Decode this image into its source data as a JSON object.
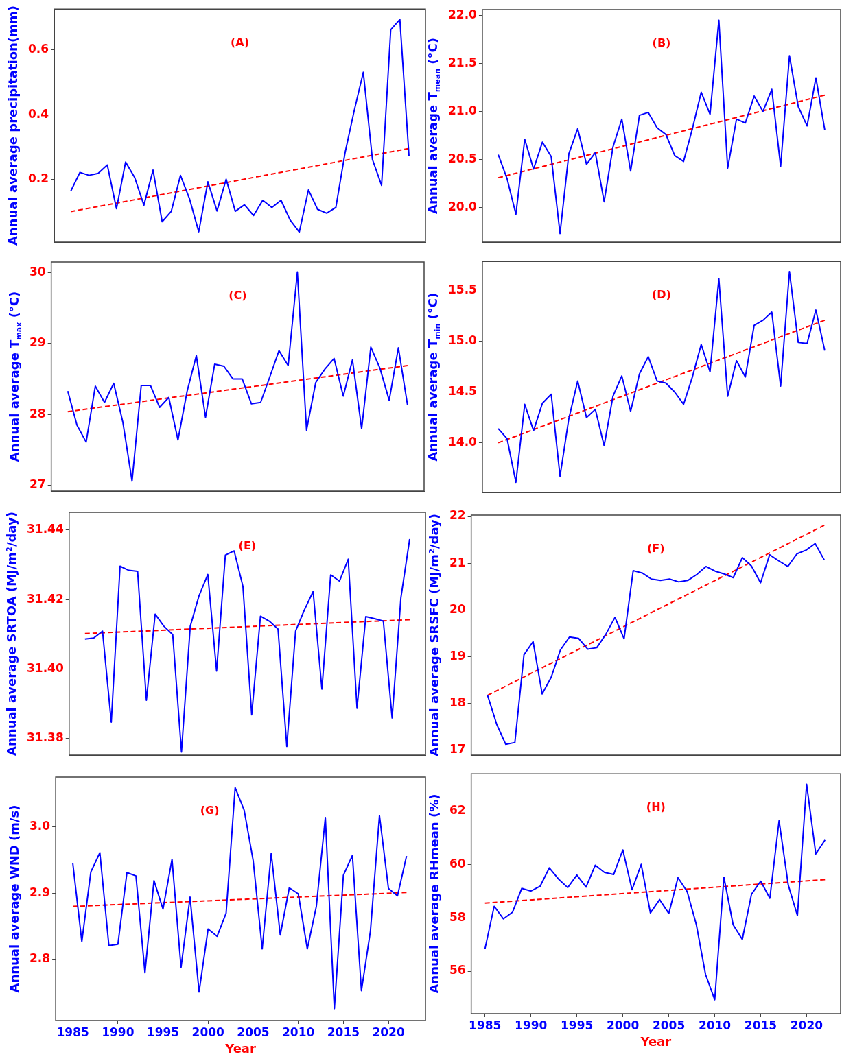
{
  "chart_data": [
    {
      "type": "line",
      "title": "(A)",
      "ylabel": "Annual average precipitation(mm)",
      "categories": [
        null,
        null,
        null,
        null,
        null,
        null,
        null,
        null,
        null,
        null,
        null,
        null,
        null,
        null,
        null,
        null,
        null,
        null,
        null,
        null,
        null,
        null,
        null,
        null,
        null,
        null,
        null,
        null,
        null,
        null,
        null,
        null,
        null,
        null,
        null,
        null,
        null,
        null
      ],
      "ylim": [
        0.007,
        0.726
      ],
      "yticks": [
        0.2,
        0.4,
        0.6
      ],
      "tick_labels": "y",
      "series": [
        {
          "color": "#0000ff",
          "values": [
            0.164,
            0.222,
            0.213,
            0.219,
            0.245,
            0.11,
            0.254,
            0.206,
            0.121,
            0.229,
            0.07,
            0.102,
            0.213,
            0.14,
            0.039,
            0.193,
            0.103,
            0.201,
            0.102,
            0.122,
            0.089,
            0.136,
            0.114,
            0.136,
            0.075,
            0.038,
            0.168,
            0.108,
            0.096,
            0.114,
            0.282,
            0.412,
            0.531,
            0.262,
            0.182,
            0.662,
            0.694,
            0.272
          ]
        },
        {
          "type": "line",
          "color": "#ff0000",
          "line_style": "dashed",
          "values": [
            0.101,
            null,
            null,
            null,
            null,
            null,
            null,
            null,
            null,
            null,
            null,
            null,
            null,
            null,
            null,
            null,
            null,
            null,
            null,
            null,
            null,
            null,
            null,
            null,
            null,
            null,
            null,
            null,
            null,
            null,
            null,
            null,
            null,
            null,
            null,
            null,
            null,
            0.296
          ]
        }
      ]
    },
    {
      "type": "line",
      "title": "(B)",
      "ylabel": "Annual average T$_{mean}$ (°C)",
      "categories": [
        null,
        null,
        null,
        null,
        null,
        null,
        null,
        null,
        null,
        null,
        null,
        null,
        null,
        null,
        null,
        null,
        null,
        null,
        null,
        null,
        null,
        null,
        null,
        null,
        null,
        null,
        null,
        null,
        null,
        null,
        null,
        null,
        null,
        null,
        null,
        null,
        null,
        null
      ],
      "ylim": [
        19.64,
        22.06
      ],
      "yticks": [
        {
          "value": 20,
          "label": "20.0"
        },
        20.5,
        {
          "value": 21,
          "label": "21.0"
        },
        21.5,
        {
          "value": 22,
          "label": "22.0"
        }
      ],
      "tick_labels": "y",
      "series": [
        {
          "color": "#0000ff",
          "values": [
            20.55,
            20.3,
            19.93,
            20.71,
            20.4,
            20.68,
            20.53,
            19.73,
            20.56,
            20.82,
            20.45,
            20.57,
            20.06,
            20.63,
            20.92,
            20.38,
            20.96,
            20.99,
            20.83,
            20.76,
            20.54,
            20.48,
            20.82,
            21.2,
            20.97,
            21.95,
            20.41,
            20.92,
            20.88,
            21.16,
            21.0,
            21.23,
            20.43,
            21.58,
            21.05,
            20.85,
            21.35,
            20.81
          ]
        },
        {
          "type": "line",
          "color": "#ff0000",
          "line_style": "dashed",
          "values": [
            20.31,
            null,
            null,
            null,
            null,
            null,
            null,
            null,
            null,
            null,
            null,
            null,
            null,
            null,
            null,
            null,
            null,
            null,
            null,
            null,
            null,
            null,
            null,
            null,
            null,
            null,
            null,
            null,
            null,
            null,
            null,
            null,
            null,
            null,
            null,
            null,
            null,
            21.17
          ]
        }
      ]
    },
    {
      "type": "line",
      "title": "(C)",
      "ylabel": "Annual average T$_{max}$ (°C)",
      "categories": [
        null,
        null,
        null,
        null,
        null,
        null,
        null,
        null,
        null,
        null,
        null,
        null,
        null,
        null,
        null,
        null,
        null,
        null,
        null,
        null,
        null,
        null,
        null,
        null,
        null,
        null,
        null,
        null,
        null,
        null,
        null,
        null,
        null,
        null,
        null,
        null,
        null,
        null
      ],
      "ylim": [
        26.92,
        30.15
      ],
      "yticks": [
        27,
        28,
        29,
        30
      ],
      "tick_labels": "y",
      "series": [
        {
          "color": "#0000ff",
          "values": [
            28.33,
            27.85,
            27.61,
            28.4,
            28.17,
            28.44,
            27.89,
            27.06,
            28.41,
            28.41,
            28.1,
            28.24,
            27.64,
            28.33,
            28.83,
            27.96,
            28.71,
            28.68,
            28.5,
            28.5,
            28.15,
            28.17,
            28.53,
            28.9,
            28.69,
            30.01,
            27.78,
            28.45,
            28.64,
            28.79,
            28.26,
            28.77,
            27.8,
            28.95,
            28.65,
            28.2,
            28.94,
            28.13
          ]
        },
        {
          "type": "line",
          "color": "#ff0000",
          "line_style": "dashed",
          "values": [
            28.04,
            null,
            null,
            null,
            null,
            null,
            null,
            null,
            null,
            null,
            null,
            null,
            null,
            null,
            null,
            null,
            null,
            null,
            null,
            null,
            null,
            null,
            null,
            null,
            null,
            null,
            null,
            null,
            null,
            null,
            null,
            null,
            null,
            null,
            null,
            null,
            null,
            28.69
          ]
        }
      ]
    },
    {
      "type": "line",
      "title": "(D)",
      "ylabel": "Annual average T$_{min}$ (°C)",
      "categories": [
        null,
        null,
        null,
        null,
        null,
        null,
        null,
        null,
        null,
        null,
        null,
        null,
        null,
        null,
        null,
        null,
        null,
        null,
        null,
        null,
        null,
        null,
        null,
        null,
        null,
        null,
        null,
        null,
        null,
        null,
        null,
        null,
        null,
        null,
        null,
        null,
        null,
        null
      ],
      "ylim": [
        13.51,
        15.79
      ],
      "yticks": [
        {
          "value": 14,
          "label": "14.0"
        },
        14.5,
        {
          "value": 15,
          "label": "15.0"
        },
        15.5
      ],
      "tick_labels": "y",
      "series": [
        {
          "color": "#0000ff",
          "values": [
            14.14,
            14.04,
            13.61,
            14.38,
            14.12,
            14.39,
            14.48,
            13.67,
            14.24,
            14.61,
            14.25,
            14.33,
            13.97,
            14.46,
            14.66,
            14.31,
            14.68,
            14.85,
            14.61,
            14.59,
            14.5,
            14.38,
            14.65,
            14.97,
            14.7,
            15.62,
            14.46,
            14.81,
            14.65,
            15.16,
            15.21,
            15.29,
            14.56,
            15.69,
            14.99,
            14.98,
            15.31,
            14.91
          ]
        },
        {
          "type": "line",
          "color": "#ff0000",
          "line_style": "dashed",
          "values": [
            14.0,
            null,
            null,
            null,
            null,
            null,
            null,
            null,
            null,
            null,
            null,
            null,
            null,
            null,
            null,
            null,
            null,
            null,
            null,
            null,
            null,
            null,
            null,
            null,
            null,
            null,
            null,
            null,
            null,
            null,
            null,
            null,
            null,
            null,
            null,
            null,
            null,
            15.21
          ]
        }
      ]
    },
    {
      "type": "line",
      "title": "(E)",
      "ylabel": "Annual average SRTOA (MJ/m²/day)",
      "categories": [
        null,
        null,
        null,
        null,
        null,
        null,
        null,
        null,
        null,
        null,
        null,
        null,
        null,
        null,
        null,
        null,
        null,
        null,
        null,
        null,
        null,
        null,
        null,
        null,
        null,
        null,
        null,
        null,
        null,
        null,
        null,
        null,
        null,
        null,
        null,
        null,
        null,
        null
      ],
      "ylim": [
        31.3752,
        31.4451
      ],
      "yticks": [
        31.38,
        {
          "value": 31.4,
          "label": "31.40"
        },
        31.42,
        31.44
      ],
      "tick_labels": "y",
      "series": [
        {
          "color": "#0000ff",
          "values": [
            31.4086,
            31.4089,
            31.4109,
            31.3847,
            31.4296,
            31.4284,
            31.4281,
            31.391,
            31.4158,
            31.4123,
            31.4099,
            31.3761,
            31.4123,
            31.4211,
            31.4272,
            31.3994,
            31.4328,
            31.434,
            31.4238,
            31.3868,
            31.4152,
            31.4138,
            31.4115,
            31.3777,
            31.4109,
            31.417,
            31.4223,
            31.3942,
            31.4271,
            31.4253,
            31.4316,
            31.3887,
            31.4151,
            31.4145,
            31.4138,
            31.3859,
            31.4205,
            31.4374
          ]
        },
        {
          "type": "line",
          "color": "#ff0000",
          "line_style": "dashed",
          "values": [
            31.4102,
            null,
            null,
            null,
            null,
            null,
            null,
            null,
            null,
            null,
            null,
            null,
            null,
            null,
            null,
            null,
            null,
            null,
            null,
            null,
            null,
            null,
            null,
            null,
            null,
            null,
            null,
            null,
            null,
            null,
            null,
            null,
            null,
            null,
            null,
            null,
            null,
            31.4142
          ]
        }
      ]
    },
    {
      "type": "line",
      "title": "(F)",
      "ylabel": "Annual average SRSFC (MJ/m²/day)",
      "categories": [
        null,
        null,
        null,
        null,
        null,
        null,
        null,
        null,
        null,
        null,
        null,
        null,
        null,
        null,
        null,
        null,
        null,
        null,
        null,
        null,
        null,
        null,
        null,
        null,
        null,
        null,
        null,
        null,
        null,
        null,
        null,
        null,
        null,
        null,
        null,
        null,
        null,
        null
      ],
      "ylim": [
        16.89,
        22.03
      ],
      "yticks": [
        17,
        18,
        19,
        20,
        21,
        22
      ],
      "tick_labels": "y",
      "series": [
        {
          "color": "#0000ff",
          "values": [
            18.17,
            17.55,
            17.12,
            17.16,
            19.04,
            19.32,
            18.2,
            18.56,
            19.14,
            19.42,
            19.39,
            19.16,
            19.19,
            19.48,
            19.84,
            19.38,
            20.84,
            20.79,
            20.66,
            20.63,
            20.66,
            20.6,
            20.63,
            20.76,
            20.93,
            20.83,
            20.77,
            20.69,
            21.12,
            20.94,
            20.58,
            21.18,
            21.05,
            20.93,
            21.2,
            21.28,
            21.42,
            21.07
          ]
        },
        {
          "type": "line",
          "color": "#ff0000",
          "line_style": "dashed",
          "values": [
            18.17,
            null,
            null,
            null,
            null,
            null,
            null,
            null,
            null,
            null,
            null,
            null,
            null,
            null,
            null,
            null,
            null,
            null,
            null,
            null,
            null,
            null,
            null,
            null,
            null,
            null,
            null,
            null,
            null,
            null,
            null,
            null,
            null,
            null,
            null,
            null,
            null,
            21.81
          ]
        }
      ]
    },
    {
      "type": "line",
      "title": "(G)",
      "xlabel": "Year",
      "ylabel": "Annual average WND (m/s)",
      "x": [
        1985,
        1986,
        1987,
        1988,
        1989,
        1990,
        1991,
        1992,
        1993,
        1994,
        1995,
        1996,
        1997,
        1998,
        1999,
        2000,
        2001,
        2002,
        2003,
        2004,
        2005,
        2006,
        2007,
        2008,
        2009,
        2010,
        2011,
        2012,
        2013,
        2014,
        2015,
        2016,
        2017,
        2018,
        2019,
        2020,
        2021,
        2022
      ],
      "xlim": [
        1983.1,
        2024.1
      ],
      "xticks": [
        1985,
        1990,
        1995,
        2000,
        2005,
        2010,
        2015,
        2020
      ],
      "ylim": [
        2.708,
        3.075
      ],
      "yticks": [
        2.8,
        2.9,
        {
          "value": 3,
          "label": "3.0"
        }
      ],
      "series": [
        {
          "color": "#0000ff",
          "values": [
            2.945,
            2.827,
            2.932,
            2.961,
            2.821,
            2.823,
            2.931,
            2.926,
            2.78,
            2.919,
            2.876,
            2.951,
            2.788,
            2.894,
            2.751,
            2.846,
            2.835,
            2.87,
            3.059,
            3.025,
            2.949,
            2.816,
            2.96,
            2.837,
            2.908,
            2.899,
            2.816,
            2.88,
            3.014,
            2.726,
            2.927,
            2.957,
            2.753,
            2.843,
            3.017,
            2.907,
            2.896,
            2.956
          ]
        },
        {
          "type": "line",
          "color": "#ff0000",
          "line_style": "dashed",
          "values": [
            2.88,
            null,
            null,
            null,
            null,
            null,
            null,
            null,
            null,
            null,
            null,
            null,
            null,
            null,
            null,
            null,
            null,
            null,
            null,
            null,
            null,
            null,
            null,
            null,
            null,
            null,
            null,
            null,
            null,
            null,
            null,
            null,
            null,
            null,
            null,
            null,
            null,
            2.901
          ]
        }
      ]
    },
    {
      "type": "line",
      "title": "(H)",
      "xlabel": "Year",
      "ylabel": "Annual average RHmean (%)",
      "x": [
        1985,
        1986,
        1987,
        1988,
        1989,
        1990,
        1991,
        1992,
        1993,
        1994,
        1995,
        1996,
        1997,
        1998,
        1999,
        2000,
        2001,
        2002,
        2003,
        2004,
        2005,
        2006,
        2007,
        2008,
        2009,
        2010,
        2011,
        2012,
        2013,
        2014,
        2015,
        2016,
        2017,
        2018,
        2019,
        2020,
        2021,
        2022
      ],
      "xlim": [
        1983.5,
        2023.7
      ],
      "xticks": [
        1985,
        1990,
        1995,
        2000,
        2005,
        2010,
        2015,
        2020
      ],
      "ylim": [
        54.41,
        63.39
      ],
      "yticks": [
        56,
        58,
        60,
        62
      ],
      "series": [
        {
          "color": "#0000ff",
          "values": [
            56.84,
            58.43,
            57.96,
            58.21,
            59.1,
            59.0,
            59.18,
            59.87,
            59.45,
            59.13,
            59.6,
            59.15,
            59.97,
            59.7,
            59.62,
            60.54,
            59.05,
            60.0,
            58.18,
            58.68,
            58.16,
            59.5,
            58.98,
            57.74,
            55.88,
            54.93,
            59.52,
            57.74,
            57.19,
            58.88,
            59.37,
            58.73,
            61.63,
            59.23,
            58.08,
            63.0,
            60.39,
            60.91
          ]
        },
        {
          "type": "line",
          "color": "#ff0000",
          "line_style": "dashed",
          "values": [
            58.55,
            null,
            null,
            null,
            null,
            null,
            null,
            null,
            null,
            null,
            null,
            null,
            null,
            null,
            null,
            null,
            null,
            null,
            null,
            null,
            null,
            null,
            null,
            null,
            null,
            null,
            null,
            null,
            null,
            null,
            null,
            null,
            null,
            null,
            null,
            null,
            null,
            59.43
          ]
        }
      ]
    }
  ]
}
